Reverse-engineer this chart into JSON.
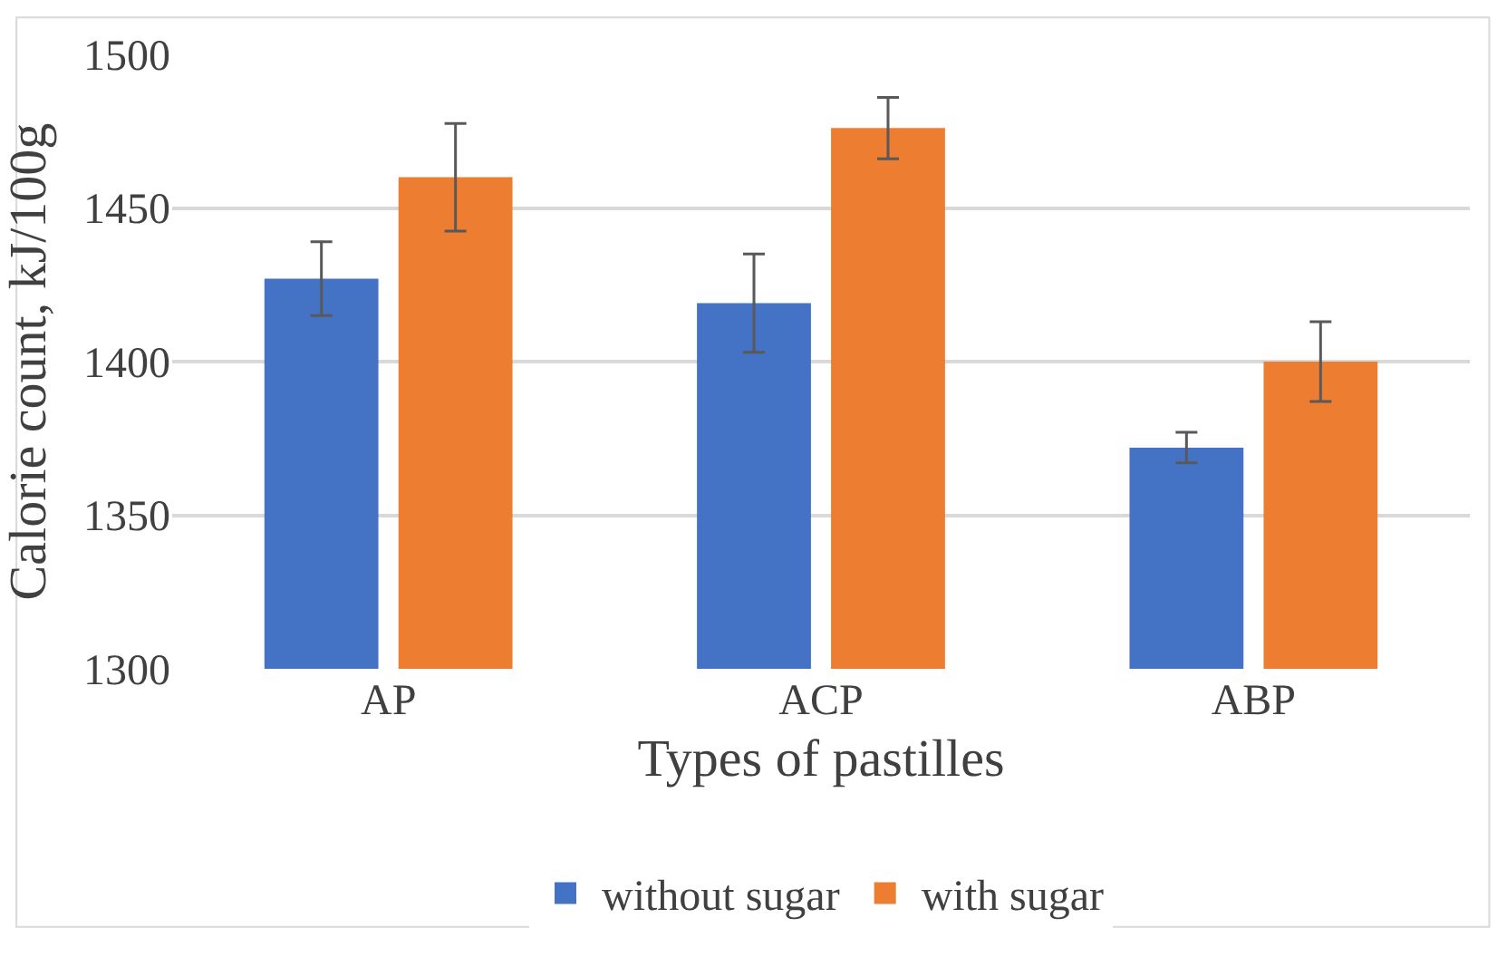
{
  "chart_data": {
    "type": "bar",
    "xlabel": "Types of pastilles",
    "ylabel": "Calorie count, kJ/100g",
    "categories": [
      "AP",
      "ACP",
      "ABP"
    ],
    "series": [
      {
        "name": "without sugar",
        "color": "#4472c4",
        "values": [
          1427,
          1419,
          1372
        ],
        "errors": [
          12,
          16,
          5
        ]
      },
      {
        "name": "with sugar",
        "color": "#ed7d31",
        "values": [
          1460,
          1476,
          1400
        ],
        "errors": [
          17.5,
          10,
          13
        ]
      }
    ],
    "ylim": [
      1300,
      1500
    ],
    "yticks": [
      1300,
      1350,
      1400,
      1450,
      1500
    ],
    "grid": "y",
    "legend": "bottom"
  }
}
